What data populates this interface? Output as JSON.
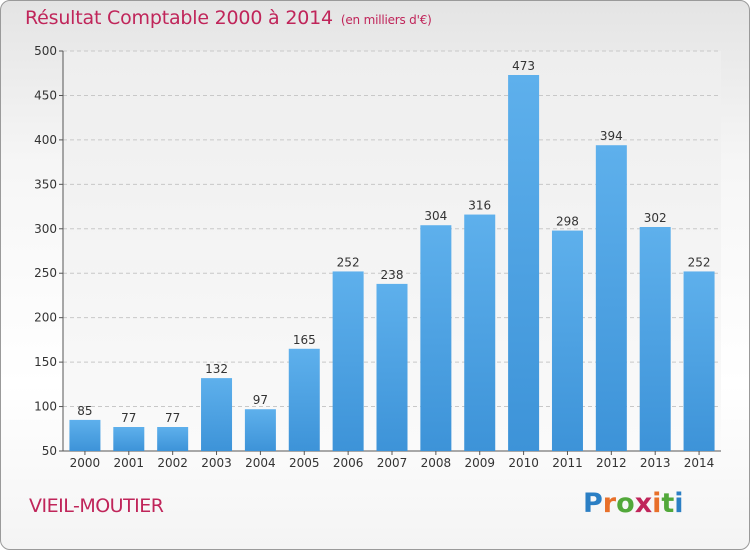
{
  "chart_data": {
    "type": "bar",
    "title": "Résultat Comptable 2000 à 2014",
    "unit_note": "(en milliers d'€)",
    "categories": [
      "2000",
      "2001",
      "2002",
      "2003",
      "2004",
      "2005",
      "2006",
      "2007",
      "2008",
      "2009",
      "2010",
      "2011",
      "2012",
      "2013",
      "2014"
    ],
    "values": [
      85,
      77,
      77,
      132,
      97,
      165,
      252,
      238,
      304,
      316,
      473,
      298,
      394,
      302,
      252
    ],
    "ylim": [
      50,
      500
    ],
    "yticks": [
      50,
      100,
      150,
      200,
      250,
      300,
      350,
      400,
      450,
      500
    ],
    "grid": true,
    "bar_color": "#3d93d8"
  },
  "commune": "VIEIL-MOUTIER",
  "logo": {
    "letters": [
      "P",
      "r",
      "o",
      "x",
      "i",
      "t",
      "i"
    ],
    "colors": [
      "#2b7fc4",
      "#e8702a",
      "#52a83a",
      "#c0255a",
      "#e8702a",
      "#52a83a",
      "#2b7fc4"
    ]
  }
}
